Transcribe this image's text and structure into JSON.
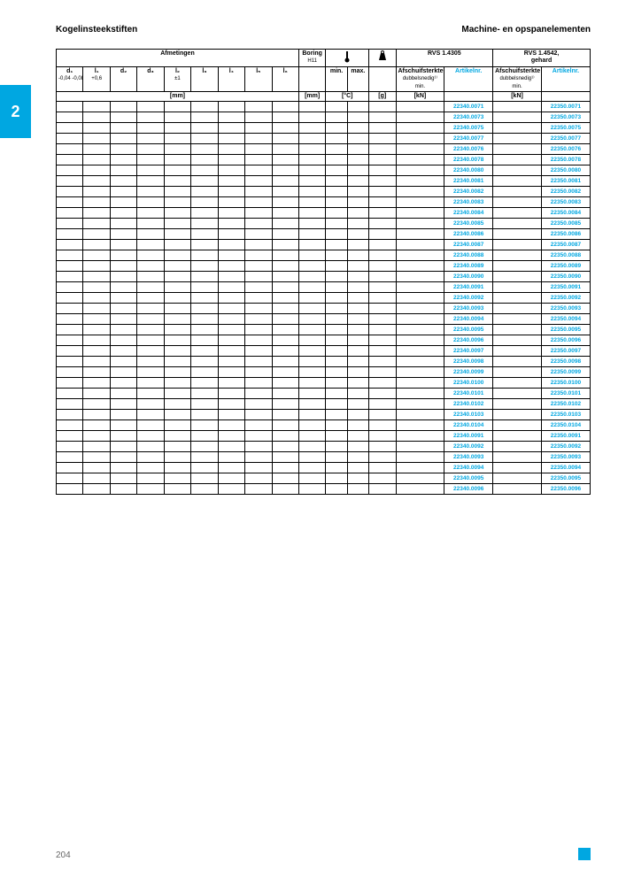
{
  "header": {
    "left": "Kogelinsteekstiften",
    "right": "Machine- en opspanelementen"
  },
  "page": {
    "tab": "2",
    "number": "204"
  },
  "table": {
    "group_headers": {
      "afmetingen": "Afmetingen",
      "boring": "Boring",
      "boring_sub": "H11",
      "temp_icon": "thermometer",
      "weight_icon": "weight",
      "rvs1": "RVS 1.4305",
      "rvs2": "RVS 1.4542,",
      "rvs2_sub": "gehard"
    },
    "col_headers": {
      "d1": "d₁",
      "d1_sub": "-0,04\n-0,08",
      "l1": "l₁",
      "l1_sub": "+0,6",
      "d2": "d₂",
      "d3": "d₃",
      "l2": "l₂",
      "l2_sub": "±1",
      "l3": "l₃",
      "l4": "l₄",
      "l5": "l₅",
      "l6": "l₆",
      "min": "min.",
      "max": "max.",
      "afschuif": "Afschuifsterkte",
      "dubbel": "dubbelsnedig¹⁾",
      "minrow": "min.",
      "artikelnr": "Artikelnr."
    },
    "unit_row": {
      "mm": "[mm]",
      "mm2": "[mm]",
      "c": "[°C]",
      "g": "[g]",
      "kn": "[kN]"
    },
    "rows": [
      {
        "a1": "22340.0071",
        "a2": "22350.0071"
      },
      {
        "a1": "22340.0073",
        "a2": "22350.0073"
      },
      {
        "a1": "22340.0075",
        "a2": "22350.0075"
      },
      {
        "a1": "22340.0077",
        "a2": "22350.0077"
      },
      {
        "a1": "22340.0076",
        "a2": "22350.0076"
      },
      {
        "a1": "22340.0078",
        "a2": "22350.0078"
      },
      {
        "a1": "22340.0080",
        "a2": "22350.0080"
      },
      {
        "a1": "22340.0081",
        "a2": "22350.0081"
      },
      {
        "a1": "22340.0082",
        "a2": "22350.0082"
      },
      {
        "a1": "22340.0083",
        "a2": "22350.0083"
      },
      {
        "a1": "22340.0084",
        "a2": "22350.0084"
      },
      {
        "a1": "22340.0085",
        "a2": "22350.0085"
      },
      {
        "a1": "22340.0086",
        "a2": "22350.0086"
      },
      {
        "a1": "22340.0087",
        "a2": "22350.0087"
      },
      {
        "a1": "22340.0088",
        "a2": "22350.0088"
      },
      {
        "a1": "22340.0089",
        "a2": "22350.0089"
      },
      {
        "a1": "22340.0090",
        "a2": "22350.0090"
      },
      {
        "a1": "22340.0091",
        "a2": "22350.0091"
      },
      {
        "a1": "22340.0092",
        "a2": "22350.0092"
      },
      {
        "a1": "22340.0093",
        "a2": "22350.0093"
      },
      {
        "a1": "22340.0094",
        "a2": "22350.0094"
      },
      {
        "a1": "22340.0095",
        "a2": "22350.0095"
      },
      {
        "a1": "22340.0096",
        "a2": "22350.0096"
      },
      {
        "a1": "22340.0097",
        "a2": "22350.0097"
      },
      {
        "a1": "22340.0098",
        "a2": "22350.0098"
      },
      {
        "a1": "22340.0099",
        "a2": "22350.0099"
      },
      {
        "a1": "22340.0100",
        "a2": "22350.0100"
      },
      {
        "a1": "22340.0101",
        "a2": "22350.0101"
      },
      {
        "a1": "22340.0102",
        "a2": "22350.0102"
      },
      {
        "a1": "22340.0103",
        "a2": "22350.0103"
      },
      {
        "a1": "22340.0104",
        "a2": "22350.0104"
      },
      {
        "a1": "22340.0091",
        "a2": "22350.0091"
      },
      {
        "a1": "22340.0092",
        "a2": "22350.0092"
      },
      {
        "a1": "22340.0093",
        "a2": "22350.0093"
      },
      {
        "a1": "22340.0094",
        "a2": "22350.0094"
      },
      {
        "a1": "22340.0095",
        "a2": "22350.0095"
      },
      {
        "a1": "22340.0096",
        "a2": "22350.0096"
      }
    ]
  }
}
